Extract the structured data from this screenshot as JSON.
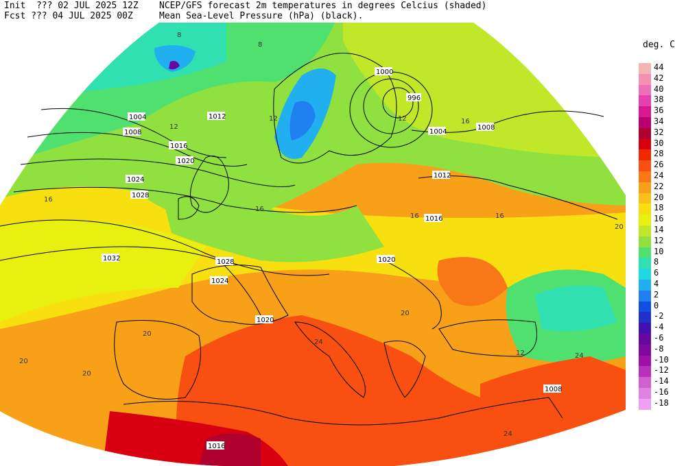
{
  "header": {
    "init": "Init  ??? 02 JUL 2025 12Z",
    "fcst": "Fcst ??? 04 JUL 2025 00Z",
    "title": "NCEP/GFS forecast 2m temperatures in degrees Celcius (shaded)",
    "subtitle": "Mean Sea-Level Pressure (hPa) (black)."
  },
  "legend": {
    "title": "deg. C",
    "items": [
      {
        "label": "44",
        "color": "#f5b5b5"
      },
      {
        "label": "42",
        "color": "#f590b0"
      },
      {
        "label": "40",
        "color": "#f070b8"
      },
      {
        "label": "38",
        "color": "#e840b0"
      },
      {
        "label": "36",
        "color": "#d81890"
      },
      {
        "label": "34",
        "color": "#b80070"
      },
      {
        "label": "32",
        "color": "#b00030"
      },
      {
        "label": "30",
        "color": "#d80010"
      },
      {
        "label": "28",
        "color": "#f02800"
      },
      {
        "label": "26",
        "color": "#f85010"
      },
      {
        "label": "24",
        "color": "#f87818"
      },
      {
        "label": "22",
        "color": "#f8a018"
      },
      {
        "label": "20",
        "color": "#f8c018"
      },
      {
        "label": "18",
        "color": "#f8e010"
      },
      {
        "label": "16",
        "color": "#e8f010"
      },
      {
        "label": "14",
        "color": "#c0e828"
      },
      {
        "label": "12",
        "color": "#90e040"
      },
      {
        "label": "10",
        "color": "#50e070"
      },
      {
        "label": "8",
        "color": "#30e0b0"
      },
      {
        "label": "6",
        "color": "#20d8e0"
      },
      {
        "label": "4",
        "color": "#20b0f0"
      },
      {
        "label": "2",
        "color": "#2080f0"
      },
      {
        "label": "0",
        "color": "#1050e0"
      },
      {
        "label": "-2",
        "color": "#2030c8"
      },
      {
        "label": "-4",
        "color": "#4010b0"
      },
      {
        "label": "-6",
        "color": "#6808a0"
      },
      {
        "label": "-8",
        "color": "#8008a0"
      },
      {
        "label": "-10",
        "color": "#a010a8"
      },
      {
        "label": "-12",
        "color": "#b830b8"
      },
      {
        "label": "-14",
        "color": "#d060d0"
      },
      {
        "label": "-16",
        "color": "#e080e0"
      },
      {
        "label": "-18",
        "color": "#f0a0f0"
      }
    ]
  },
  "isobars": [
    "1004",
    "1008",
    "1012",
    "1016",
    "1020",
    "1024",
    "1028",
    "1032",
    "1000",
    "996",
    "1004",
    "1008",
    "1012",
    "1016",
    "1020",
    "1024",
    "1028",
    "1020",
    "1016",
    "1008"
  ],
  "temp_labels": [
    "8",
    "8",
    "12",
    "12",
    "12",
    "16",
    "16",
    "16",
    "20",
    "20",
    "20",
    "24",
    "24",
    "24",
    "16",
    "16",
    "12",
    "20",
    "20"
  ]
}
